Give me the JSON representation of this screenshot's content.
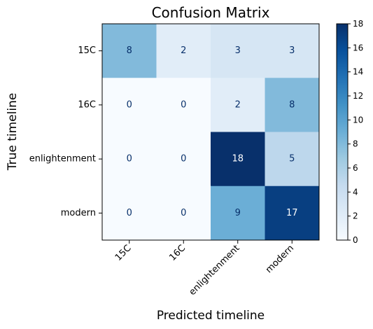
{
  "chart_data": {
    "type": "heatmap",
    "title": "Confusion Matrix",
    "xlabel": "Predicted timeline",
    "ylabel": "True timeline",
    "x_categories": [
      "15C",
      "16C",
      "enlightenment",
      "modern"
    ],
    "y_categories": [
      "15C",
      "16C",
      "enlightenment",
      "modern"
    ],
    "values": [
      [
        8,
        2,
        3,
        3
      ],
      [
        0,
        0,
        2,
        8
      ],
      [
        0,
        0,
        18,
        5
      ],
      [
        0,
        0,
        9,
        17
      ]
    ],
    "colormap": "Blues",
    "vmin": 0,
    "vmax": 18,
    "colorbar_ticks": [
      0,
      2,
      4,
      6,
      8,
      10,
      12,
      14,
      16,
      18
    ],
    "grid": false,
    "colors": {
      "low": "#f7fbff",
      "high": "#08306b"
    }
  }
}
